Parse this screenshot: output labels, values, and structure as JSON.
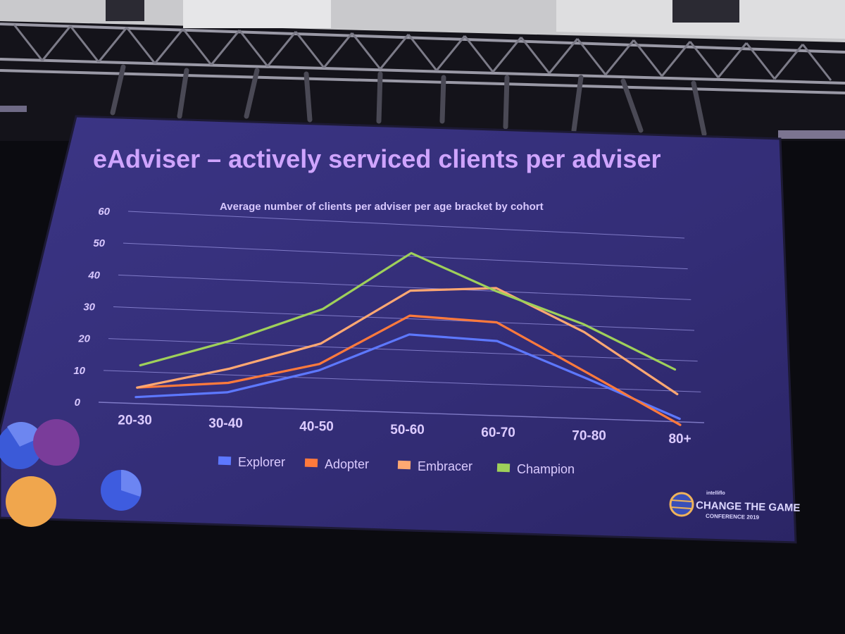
{
  "slide": {
    "title": "eAdviser – actively serviced clients per adviser"
  },
  "logo": {
    "small": "intelliflo",
    "main": "CHANGE THE GAME",
    "sub": "CONFERENCE 2019"
  },
  "colors": {
    "screen_bg": "#352e78",
    "Explorer": "#5d78ff",
    "Adopter": "#ff7a3c",
    "Embracer": "#ffa872",
    "Champion": "#9fd05a"
  },
  "chart_data": {
    "type": "line",
    "title": "Average number of clients per adviser per age bracket by cohort",
    "categories": [
      "20-30",
      "30-40",
      "40-50",
      "50-60",
      "60-70",
      "70-80",
      "80+"
    ],
    "ylim": [
      0,
      60
    ],
    "yticks": [
      "0",
      "10",
      "20",
      "30",
      "40",
      "50",
      "60"
    ],
    "grid": true,
    "legend_position": "bottom",
    "series": [
      {
        "name": "Explorer",
        "values": [
          2,
          4.5,
          12.5,
          25,
          24,
          13,
          1
        ]
      },
      {
        "name": "Adopter",
        "values": [
          5,
          7.5,
          14.5,
          31,
          30,
          15,
          -1
        ]
      },
      {
        "name": "Embracer",
        "values": [
          5,
          12,
          21,
          39,
          41,
          28,
          9
        ]
      },
      {
        "name": "Champion",
        "values": [
          12,
          21,
          32,
          51,
          40,
          30.5,
          17
        ]
      }
    ]
  }
}
